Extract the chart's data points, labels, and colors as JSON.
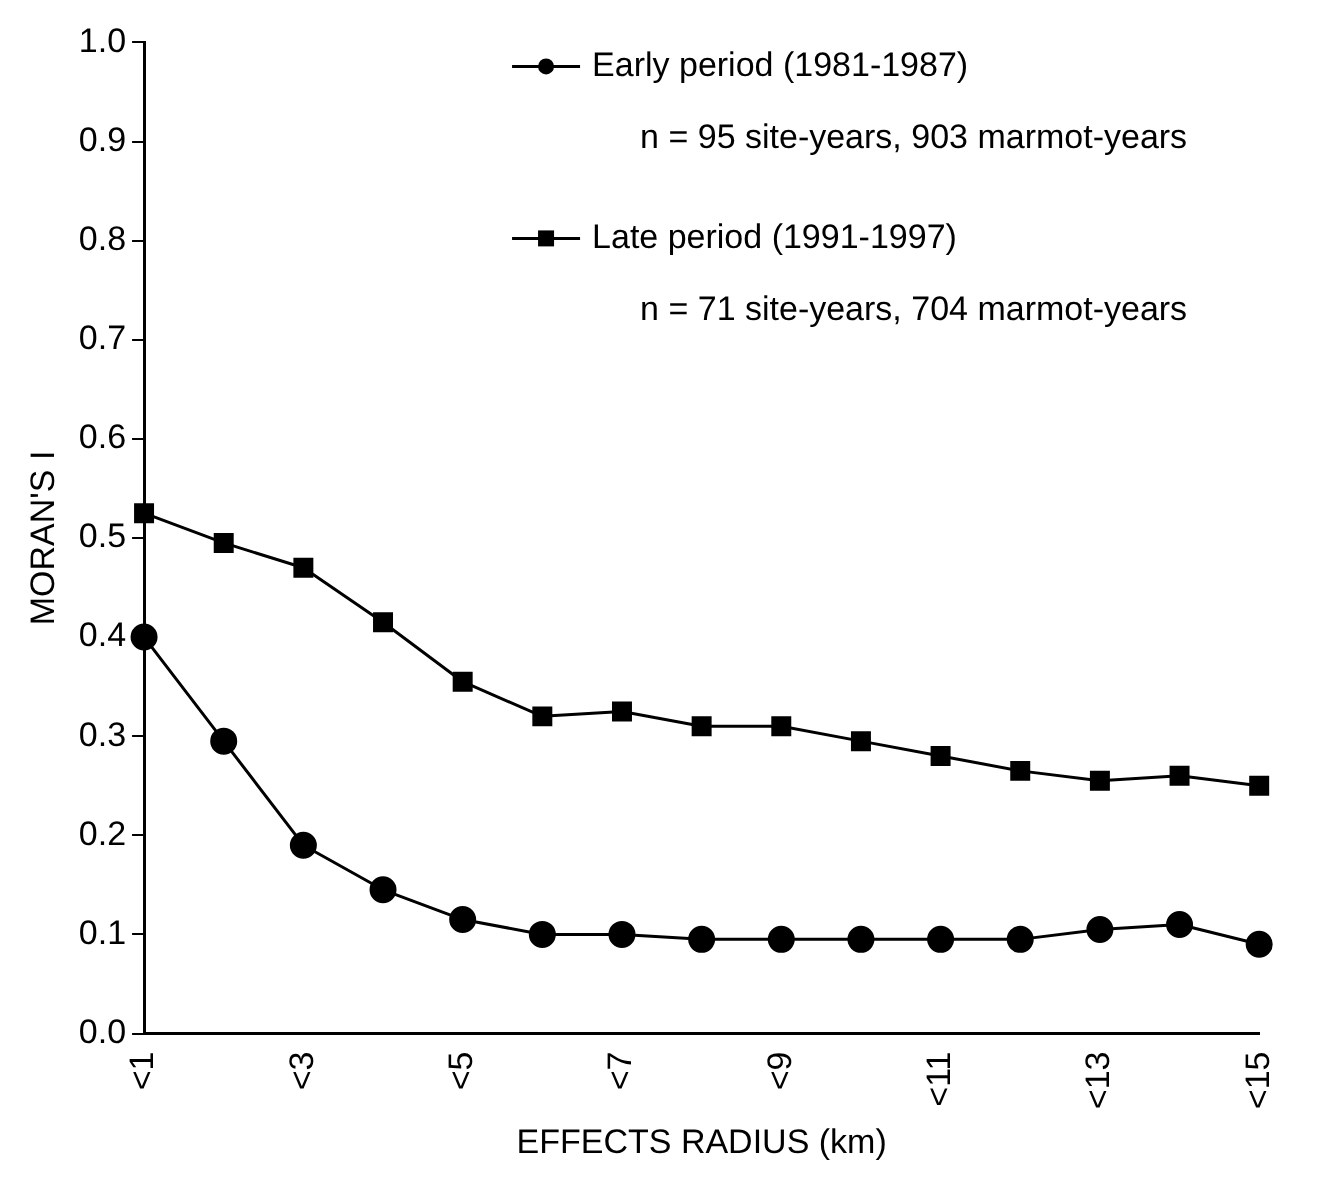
{
  "chart_data": {
    "type": "line",
    "xlabel": "EFFECTS RADIUS (km)",
    "ylabel": "MORAN'S I",
    "categories": [
      "<1",
      null,
      "<3",
      null,
      "<5",
      null,
      "<7",
      null,
      "<9",
      null,
      "<11",
      null,
      "<13",
      null,
      "<15"
    ],
    "series": [
      {
        "name": "Early period (1981-1987)",
        "color": "#000000",
        "marker": "circle",
        "values": [
          0.4,
          0.295,
          0.19,
          0.145,
          0.115,
          0.1,
          0.1,
          0.095,
          0.095,
          0.095,
          0.095,
          0.095,
          0.105,
          0.11,
          0.09
        ]
      },
      {
        "name": "Late period (1991-1997)",
        "color": "#000000",
        "marker": "square",
        "values": [
          0.525,
          0.495,
          0.47,
          0.415,
          0.355,
          0.32,
          0.325,
          0.31,
          0.31,
          0.295,
          0.28,
          0.265,
          0.255,
          0.26,
          0.25
        ]
      }
    ],
    "annotations": [
      "n = 95 site-years, 903 marmot-years",
      "n = 71 site-years, 704 marmot-years"
    ],
    "ylim": [
      0,
      1
    ],
    "yticks": [
      {
        "value": 0,
        "label": "0.0"
      },
      {
        "value": 0.1,
        "label": "0.1"
      },
      {
        "value": 0.2,
        "label": "0.2"
      },
      {
        "value": 0.3,
        "label": "0.3"
      },
      {
        "value": 0.4,
        "label": "0.4"
      },
      {
        "value": 0.5,
        "label": "0.5"
      },
      {
        "value": 0.6,
        "label": "0.6"
      },
      {
        "value": 0.7,
        "label": "0.7"
      },
      {
        "value": 0.8,
        "label": "0.8"
      },
      {
        "value": 0.9,
        "label": "0.9"
      },
      {
        "value": 1,
        "label": "1.0"
      }
    ],
    "grid": false,
    "legend": "top right",
    "line_style": "solid"
  }
}
